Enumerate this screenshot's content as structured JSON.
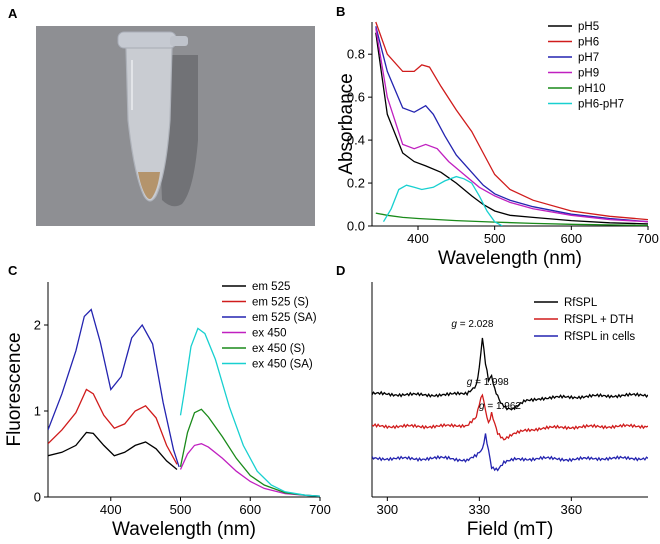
{
  "figure": {
    "panel_labels": [
      "A",
      "B",
      "C",
      "D"
    ]
  },
  "photo": {
    "description_icon": "microcentrifuge-tube-photo",
    "background_color": "#8e8f93",
    "tube_color": "#c9ccd2",
    "liquid_color": "#b08a5a"
  },
  "chart_data": [
    {
      "panel": "B",
      "type": "line",
      "xlabel": "Wavelength (nm)",
      "ylabel": "Absorbance",
      "xlim": [
        340,
        700
      ],
      "ylim": [
        0,
        0.95
      ],
      "xticks": [
        400,
        500,
        600,
        700
      ],
      "yticks": [
        0.0,
        0.2,
        0.4,
        0.6,
        0.8
      ],
      "ytick_labels": [
        "0.0",
        "0.2",
        "0.4",
        "0.6",
        "0.8"
      ],
      "legend_position": "top-right",
      "series": [
        {
          "name": "pH5",
          "color": "#000000",
          "x": [
            345,
            360,
            380,
            395,
            410,
            430,
            450,
            470,
            485,
            500,
            520,
            550,
            600,
            650,
            700
          ],
          "y": [
            0.9,
            0.52,
            0.34,
            0.3,
            0.28,
            0.25,
            0.2,
            0.14,
            0.1,
            0.07,
            0.05,
            0.04,
            0.025,
            0.015,
            0.01
          ]
        },
        {
          "name": "pH6",
          "color": "#d01c1c",
          "x": [
            345,
            360,
            380,
            395,
            405,
            415,
            430,
            450,
            470,
            485,
            500,
            520,
            550,
            600,
            650,
            700
          ],
          "y": [
            0.95,
            0.8,
            0.72,
            0.72,
            0.75,
            0.74,
            0.65,
            0.54,
            0.44,
            0.34,
            0.24,
            0.17,
            0.12,
            0.07,
            0.045,
            0.03
          ]
        },
        {
          "name": "pH7",
          "color": "#2424b0",
          "x": [
            345,
            360,
            380,
            395,
            410,
            420,
            435,
            450,
            470,
            485,
            500,
            520,
            550,
            600,
            650,
            700
          ],
          "y": [
            0.93,
            0.72,
            0.55,
            0.53,
            0.56,
            0.52,
            0.42,
            0.33,
            0.25,
            0.19,
            0.15,
            0.12,
            0.09,
            0.055,
            0.035,
            0.02
          ]
        },
        {
          "name": "pH9",
          "color": "#c020c0",
          "x": [
            345,
            360,
            380,
            395,
            410,
            425,
            440,
            460,
            480,
            500,
            520,
            550,
            600,
            650,
            700
          ],
          "y": [
            0.92,
            0.6,
            0.38,
            0.36,
            0.38,
            0.36,
            0.3,
            0.24,
            0.18,
            0.14,
            0.11,
            0.08,
            0.05,
            0.03,
            0.02
          ]
        },
        {
          "name": "pH10",
          "color": "#1a8a1a",
          "x": [
            345,
            360,
            380,
            400,
            450,
            500,
            550,
            600,
            650,
            700
          ],
          "y": [
            0.06,
            0.05,
            0.04,
            0.035,
            0.025,
            0.018,
            0.012,
            0.008,
            0.005,
            0.003
          ]
        },
        {
          "name": "pH6-pH7",
          "color": "#18d0d0",
          "x": [
            355,
            365,
            375,
            385,
            395,
            405,
            420,
            435,
            450,
            460,
            470,
            480,
            490,
            500,
            510
          ],
          "y": [
            0.02,
            0.08,
            0.17,
            0.19,
            0.18,
            0.17,
            0.18,
            0.21,
            0.23,
            0.22,
            0.2,
            0.14,
            0.07,
            0.02,
            0.0
          ]
        }
      ]
    },
    {
      "panel": "C",
      "type": "line",
      "xlabel": "Wavelength (nm)",
      "ylabel": "Fluorescence",
      "xlim": [
        310,
        700
      ],
      "ylim": [
        0,
        2.5
      ],
      "xticks": [
        400,
        500,
        600,
        700
      ],
      "yticks": [
        0,
        1,
        2
      ],
      "ytick_labels": [
        "0",
        "1",
        "2"
      ],
      "legend_position": "top-right",
      "series": [
        {
          "name": "em 525",
          "color": "#000000",
          "x": [
            310,
            330,
            350,
            365,
            375,
            390,
            405,
            420,
            435,
            450,
            465,
            480,
            495
          ],
          "y": [
            0.48,
            0.52,
            0.6,
            0.75,
            0.74,
            0.6,
            0.48,
            0.52,
            0.6,
            0.64,
            0.56,
            0.42,
            0.32
          ]
        },
        {
          "name": "em 525 (S)",
          "color": "#d01c1c",
          "x": [
            310,
            330,
            350,
            365,
            375,
            390,
            405,
            420,
            435,
            450,
            465,
            480,
            495
          ],
          "y": [
            0.62,
            0.78,
            0.98,
            1.25,
            1.2,
            0.95,
            0.8,
            0.85,
            1.0,
            1.06,
            0.92,
            0.6,
            0.38
          ]
        },
        {
          "name": "em 525 (SA)",
          "color": "#2424b0",
          "x": [
            310,
            330,
            350,
            362,
            372,
            385,
            400,
            415,
            430,
            445,
            460,
            475,
            490,
            498
          ],
          "y": [
            0.78,
            1.2,
            1.7,
            2.1,
            2.18,
            1.8,
            1.25,
            1.4,
            1.85,
            2.0,
            1.78,
            1.1,
            0.55,
            0.35
          ]
        },
        {
          "name": "ex 450",
          "color": "#c020c0",
          "x": [
            500,
            510,
            520,
            530,
            540,
            560,
            580,
            600,
            620,
            650,
            680,
            700
          ],
          "y": [
            0.32,
            0.5,
            0.6,
            0.62,
            0.58,
            0.45,
            0.3,
            0.18,
            0.1,
            0.04,
            0.02,
            0.01
          ]
        },
        {
          "name": "ex 450 (S)",
          "color": "#1a8a1a",
          "x": [
            500,
            510,
            520,
            530,
            540,
            560,
            580,
            600,
            620,
            650,
            680,
            700
          ],
          "y": [
            0.35,
            0.75,
            0.98,
            1.02,
            0.93,
            0.7,
            0.45,
            0.25,
            0.14,
            0.05,
            0.02,
            0.01
          ]
        },
        {
          "name": "ex 450 (SA)",
          "color": "#18d0d0",
          "x": [
            500,
            505,
            515,
            525,
            535,
            550,
            570,
            590,
            610,
            630,
            650,
            680,
            700
          ],
          "y": [
            0.95,
            1.2,
            1.75,
            1.96,
            1.9,
            1.6,
            1.05,
            0.6,
            0.3,
            0.14,
            0.06,
            0.02,
            0.01
          ]
        }
      ]
    },
    {
      "panel": "D",
      "type": "line",
      "xlabel": "Field (mT)",
      "ylabel": "",
      "xlim": [
        295,
        385
      ],
      "ylim": [
        0,
        10
      ],
      "xticks": [
        300,
        330,
        360
      ],
      "yticks": [],
      "legend_position": "top-right",
      "annotations": [
        {
          "g_prefix": "g",
          "text": " = 2.028",
          "x": 331,
          "y": 7.9
        },
        {
          "g_prefix": "g",
          "text": " = 1.998",
          "x": 336,
          "y": 5.2
        },
        {
          "g_prefix": "g",
          "text": " = 1.962",
          "x": 340,
          "y": 4.1
        }
      ],
      "series": [
        {
          "name": "RfSPL",
          "color": "#000000",
          "baseline": 4.7,
          "x": [
            295,
            310,
            320,
            326,
            329,
            330,
            331,
            332,
            333,
            334,
            335,
            337,
            339,
            341,
            345,
            350,
            360,
            370,
            385
          ],
          "y": [
            4.8,
            4.75,
            4.75,
            4.85,
            5.2,
            6.0,
            7.4,
            6.2,
            5.4,
            5.6,
            5.0,
            4.4,
            4.15,
            4.1,
            4.45,
            4.6,
            4.65,
            4.7,
            4.75
          ]
        },
        {
          "name": "RfSPL + DTH",
          "color": "#d01c1c",
          "baseline": 3.3,
          "x": [
            295,
            310,
            320,
            326,
            329,
            330,
            331,
            332,
            333,
            334,
            336,
            338,
            341,
            345,
            350,
            360,
            370,
            385
          ],
          "y": [
            3.3,
            3.28,
            3.3,
            3.35,
            3.7,
            4.3,
            4.75,
            4.0,
            3.4,
            3.9,
            3.0,
            2.7,
            2.9,
            3.1,
            3.2,
            3.25,
            3.28,
            3.3
          ]
        },
        {
          "name": "RfSPL in cells",
          "color": "#2424b0",
          "baseline": 1.8,
          "x": [
            295,
            310,
            320,
            326,
            329,
            331,
            332,
            333,
            334,
            336,
            338,
            342,
            350,
            360,
            370,
            385
          ],
          "y": [
            1.8,
            1.78,
            1.82,
            1.7,
            1.9,
            2.2,
            2.9,
            2.2,
            1.4,
            1.3,
            1.6,
            1.75,
            1.8,
            1.75,
            1.8,
            1.8
          ]
        }
      ]
    }
  ]
}
